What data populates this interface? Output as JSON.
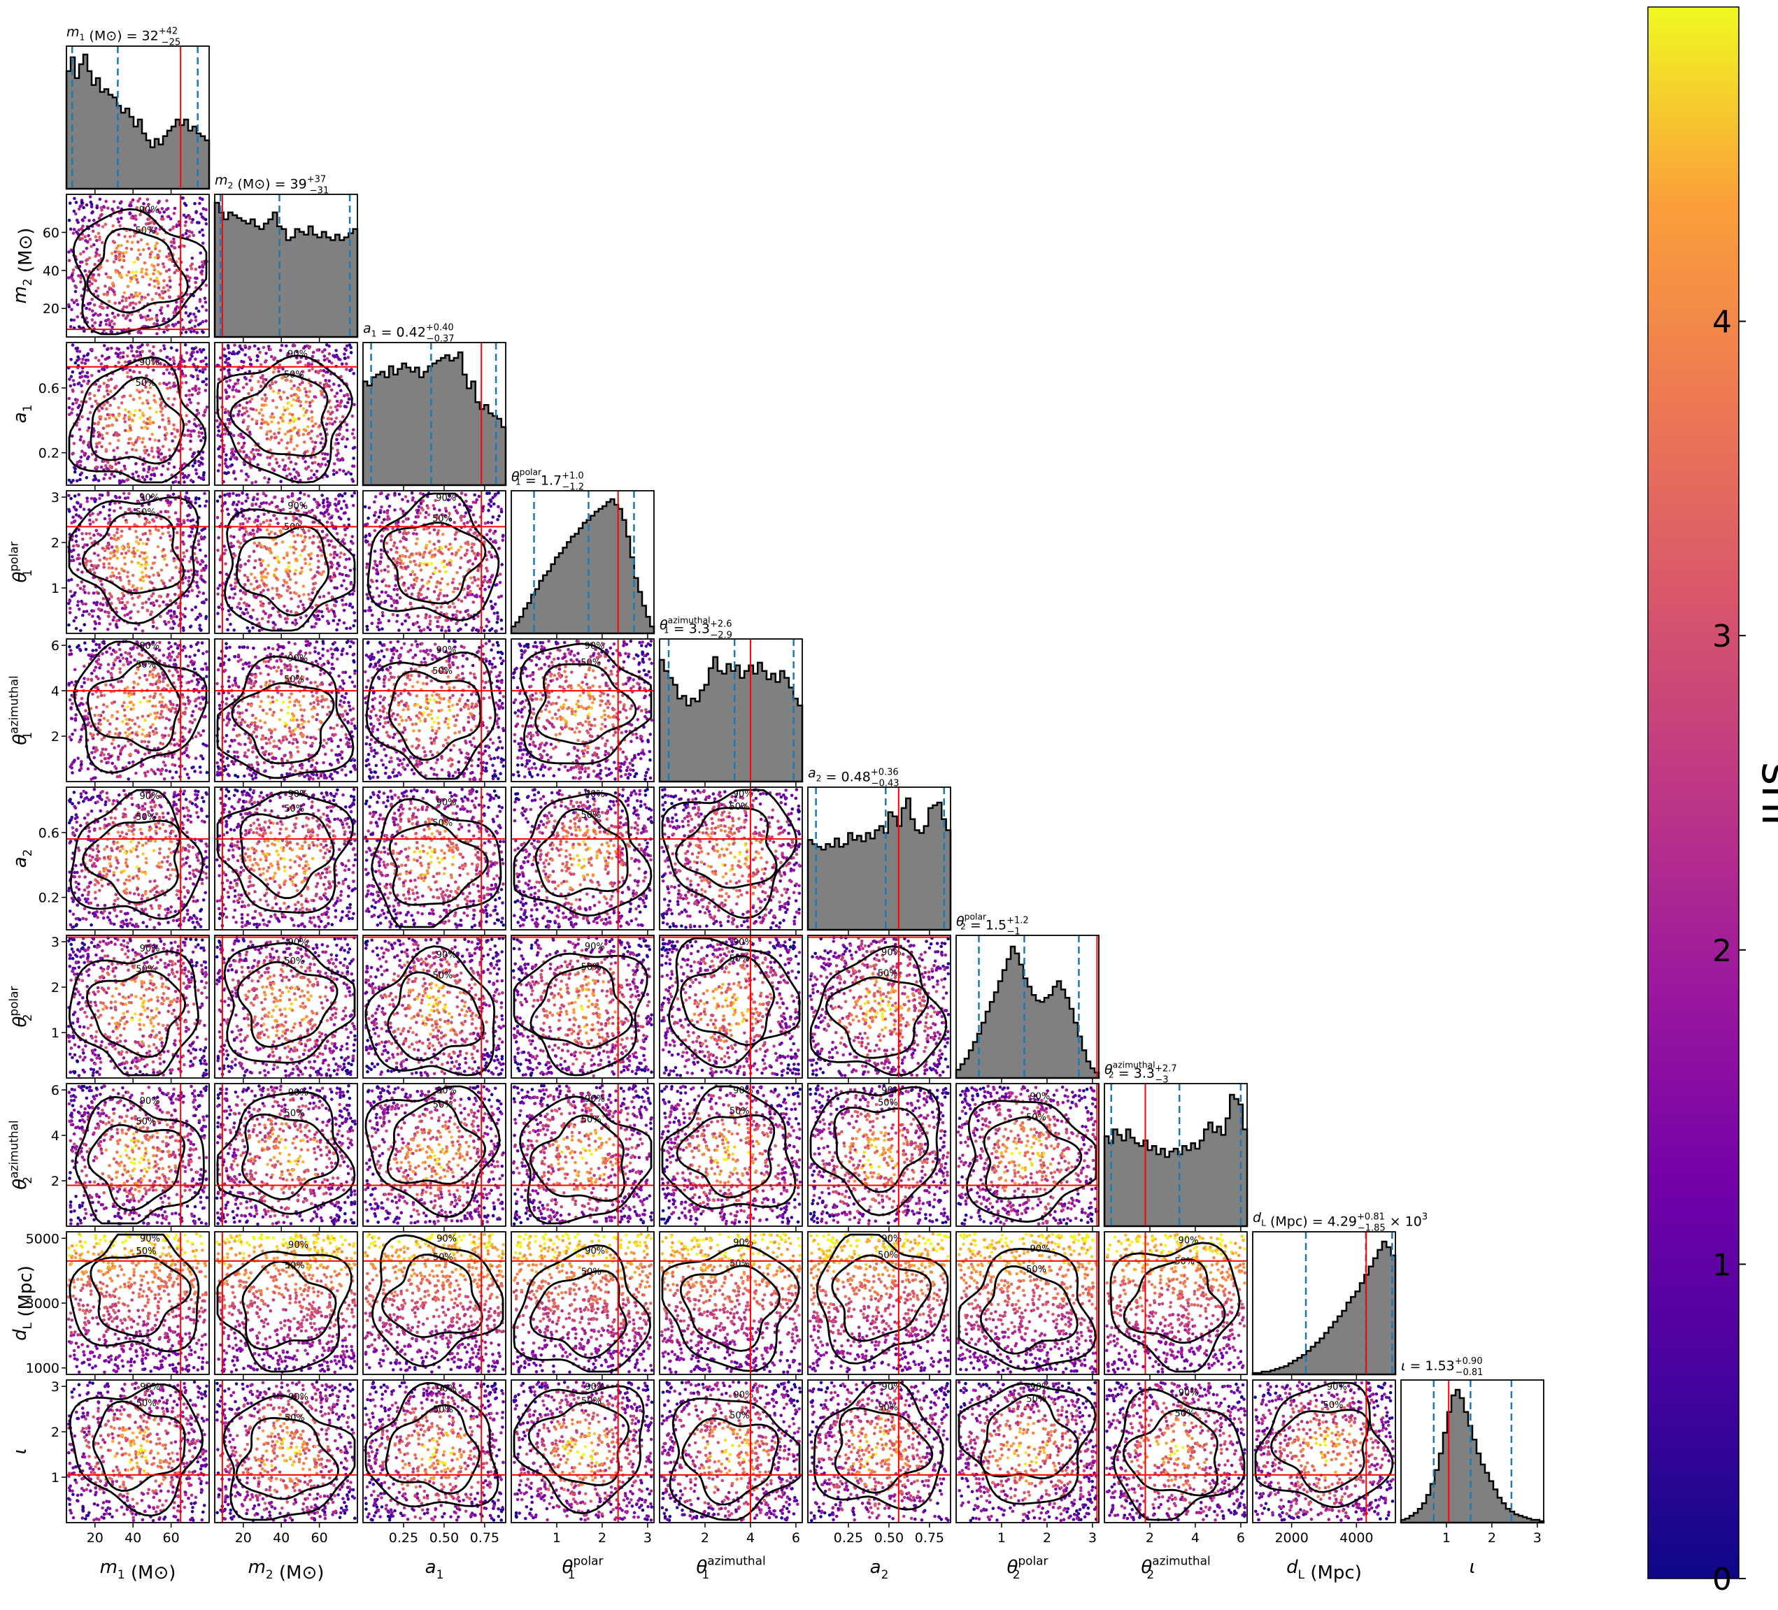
{
  "chart_data": {
    "type": "corner",
    "parameters": [
      {
        "label": "m1 (M⊙)",
        "sym": "m",
        "sub": "1",
        "unit": " (M⊙)",
        "range": [
          5,
          80
        ],
        "ticks": [
          20,
          40,
          60
        ],
        "tick_labels": [
          "20",
          "40",
          "60"
        ],
        "title": {
          "value": "32",
          "plus": "+42",
          "minus": "−25"
        },
        "truth": 65,
        "quantiles": [
          8,
          32,
          74
        ]
      },
      {
        "label": "m2 (M⊙)",
        "sym": "m",
        "sub": "2",
        "unit": " (M⊙)",
        "range": [
          5,
          80
        ],
        "ticks": [
          20,
          40,
          60
        ],
        "tick_labels": [
          "20",
          "40",
          "60"
        ],
        "title": {
          "value": "39",
          "plus": "+37",
          "minus": "−31"
        },
        "truth": 9,
        "quantiles": [
          8,
          39,
          76
        ]
      },
      {
        "label": "a1",
        "sym": "a",
        "sub": "1",
        "unit": "",
        "range": [
          0,
          0.88
        ],
        "ticks": [
          0.25,
          0.5,
          0.75
        ],
        "tick_labels": [
          "0.25",
          "0.50",
          "0.75"
        ],
        "y_ticks": [
          0.2,
          0.6
        ],
        "y_tick_labels": [
          "0.2",
          "0.6"
        ],
        "title": {
          "value": "0.42",
          "plus": "+0.40",
          "minus": "−0.37"
        },
        "truth": 0.73,
        "quantiles": [
          0.05,
          0.42,
          0.82
        ]
      },
      {
        "label": "θ1 polar",
        "sym": "θ",
        "sub": "1",
        "sup": "polar",
        "unit": "",
        "range": [
          0,
          3.14
        ],
        "ticks": [
          1,
          2,
          3
        ],
        "tick_labels": [
          "1",
          "2",
          "3"
        ],
        "title": {
          "value": "1.7",
          "plus": "+1.0",
          "minus": "−1.2"
        },
        "truth": 2.35,
        "quantiles": [
          0.5,
          1.7,
          2.7
        ]
      },
      {
        "label": "θ1 azimuthal",
        "sym": "θ",
        "sub": "1",
        "sup": "azimuthal",
        "unit": "",
        "range": [
          0,
          6.28
        ],
        "ticks": [
          2,
          4,
          6
        ],
        "tick_labels": [
          "2",
          "4",
          "6"
        ],
        "title": {
          "value": "3.3",
          "plus": "+2.6",
          "minus": "−2.9"
        },
        "truth": 4.0,
        "quantiles": [
          0.4,
          3.3,
          5.9
        ]
      },
      {
        "label": "a2",
        "sym": "a",
        "sub": "2",
        "unit": "",
        "range": [
          0,
          0.88
        ],
        "ticks": [
          0.25,
          0.5,
          0.75
        ],
        "tick_labels": [
          "0.25",
          "0.50",
          "0.75"
        ],
        "y_ticks": [
          0.2,
          0.6
        ],
        "y_tick_labels": [
          "0.2",
          "0.6"
        ],
        "title": {
          "value": "0.48",
          "plus": "+0.36",
          "minus": "−0.43"
        },
        "truth": 0.56,
        "quantiles": [
          0.05,
          0.48,
          0.84
        ]
      },
      {
        "label": "θ2 polar",
        "sym": "θ",
        "sub": "2",
        "sup": "polar",
        "unit": "",
        "range": [
          0,
          3.14
        ],
        "ticks": [
          1,
          2,
          3
        ],
        "tick_labels": [
          "1",
          "2",
          "3"
        ],
        "title": {
          "value": "1.5",
          "plus": "+1.2",
          "minus": "−1"
        },
        "truth": 3.1,
        "quantiles": [
          0.5,
          1.5,
          2.7
        ]
      },
      {
        "label": "θ2 azimuthal",
        "sym": "θ",
        "sub": "2",
        "sup": "azimuthal",
        "unit": "",
        "range": [
          0,
          6.28
        ],
        "ticks": [
          2,
          4,
          6
        ],
        "tick_labels": [
          "2",
          "4",
          "6"
        ],
        "title": {
          "value": "3.3",
          "plus": "+2.7",
          "minus": "−3"
        },
        "truth": 1.8,
        "quantiles": [
          0.3,
          3.3,
          6.0
        ]
      },
      {
        "label": "dL (Mpc)",
        "sym": "d",
        "sub": "L",
        "unit": " (Mpc)",
        "range": [
          800,
          5200
        ],
        "ticks": [
          2000,
          4000
        ],
        "tick_labels": [
          "2000",
          "4000"
        ],
        "y_ticks": [
          1000,
          3000,
          5000
        ],
        "y_tick_labels": [
          "1000",
          "3000",
          "5000"
        ],
        "title": {
          "value": "4.29",
          "plus": "+0.81",
          "minus": "−1.85",
          "suffix": " × 10",
          "exp": "3"
        },
        "truth": 4300,
        "quantiles": [
          2440,
          4290,
          5100
        ]
      },
      {
        "label": "ι",
        "sym": "ι",
        "sub": "",
        "unit": "",
        "range": [
          0,
          3.14
        ],
        "ticks": [
          1,
          2,
          3
        ],
        "tick_labels": [
          "1",
          "2",
          "3"
        ],
        "title": {
          "value": "1.53",
          "plus": "+0.90",
          "minus": "−0.81"
        },
        "truth": 1.05,
        "quantiles": [
          0.72,
          1.53,
          2.43
        ]
      }
    ],
    "histograms": [
      [
        0.85,
        0.95,
        0.8,
        0.9,
        0.97,
        0.85,
        0.75,
        0.8,
        0.7,
        0.72,
        0.68,
        0.66,
        0.6,
        0.55,
        0.58,
        0.52,
        0.45,
        0.5,
        0.4,
        0.35,
        0.3,
        0.36,
        0.32,
        0.38,
        0.42,
        0.45,
        0.5,
        0.46,
        0.5,
        0.42,
        0.45,
        0.4,
        0.38,
        0.35
      ],
      [
        0.97,
        0.9,
        0.85,
        0.9,
        0.88,
        0.86,
        0.84,
        0.82,
        0.85,
        0.8,
        0.78,
        0.82,
        0.85,
        0.9,
        0.8,
        0.78,
        0.7,
        0.72,
        0.78,
        0.76,
        0.74,
        0.8,
        0.74,
        0.72,
        0.76,
        0.72,
        0.7,
        0.74,
        0.7,
        0.72,
        0.75,
        0.78
      ],
      [
        0.75,
        0.72,
        0.78,
        0.8,
        0.82,
        0.78,
        0.86,
        0.8,
        0.84,
        0.88,
        0.85,
        0.82,
        0.85,
        0.78,
        0.82,
        0.86,
        0.88,
        0.9,
        0.92,
        0.94,
        0.9,
        0.92,
        0.96,
        0.8,
        0.7,
        0.75,
        0.6,
        0.55,
        0.58,
        0.52,
        0.5,
        0.48,
        0.42
      ],
      [
        0.05,
        0.08,
        0.12,
        0.18,
        0.22,
        0.28,
        0.32,
        0.38,
        0.42,
        0.45,
        0.5,
        0.55,
        0.58,
        0.62,
        0.66,
        0.7,
        0.72,
        0.76,
        0.8,
        0.82,
        0.85,
        0.88,
        0.9,
        0.92,
        0.95,
        0.97,
        0.93,
        0.9,
        0.82,
        0.7,
        0.55,
        0.4,
        0.3,
        0.2,
        0.12,
        0.05
      ],
      [
        0.88,
        0.8,
        0.75,
        0.7,
        0.6,
        0.62,
        0.55,
        0.6,
        0.58,
        0.66,
        0.7,
        0.82,
        0.9,
        0.8,
        0.78,
        0.85,
        0.8,
        0.84,
        0.75,
        0.8,
        0.84,
        0.78,
        0.86,
        0.8,
        0.74,
        0.78,
        0.72,
        0.8,
        0.75,
        0.68,
        0.6,
        0.55
      ],
      [
        0.65,
        0.62,
        0.6,
        0.58,
        0.62,
        0.6,
        0.66,
        0.6,
        0.62,
        0.7,
        0.65,
        0.68,
        0.64,
        0.7,
        0.66,
        0.72,
        0.75,
        0.7,
        0.85,
        0.82,
        0.75,
        0.88,
        0.95,
        0.8,
        0.72,
        0.7,
        0.75,
        0.88,
        0.9,
        0.92,
        0.8,
        0.72
      ],
      [
        0.06,
        0.1,
        0.14,
        0.2,
        0.26,
        0.32,
        0.4,
        0.48,
        0.55,
        0.62,
        0.7,
        0.78,
        0.86,
        0.95,
        0.9,
        0.82,
        0.72,
        0.66,
        0.6,
        0.56,
        0.55,
        0.58,
        0.6,
        0.66,
        0.7,
        0.64,
        0.58,
        0.5,
        0.4,
        0.3,
        0.2,
        0.12,
        0.07,
        0.04
      ],
      [
        0.65,
        0.6,
        0.7,
        0.66,
        0.62,
        0.7,
        0.64,
        0.6,
        0.58,
        0.62,
        0.55,
        0.58,
        0.52,
        0.56,
        0.5,
        0.54,
        0.56,
        0.52,
        0.58,
        0.55,
        0.6,
        0.56,
        0.62,
        0.7,
        0.75,
        0.68,
        0.72,
        0.66,
        0.78,
        0.95,
        0.92,
        0.88,
        0.7
      ],
      [
        0.01,
        0.01,
        0.02,
        0.02,
        0.03,
        0.04,
        0.05,
        0.06,
        0.08,
        0.1,
        0.12,
        0.14,
        0.17,
        0.2,
        0.23,
        0.26,
        0.3,
        0.34,
        0.38,
        0.42,
        0.46,
        0.52,
        0.56,
        0.6,
        0.66,
        0.72,
        0.78,
        0.84,
        0.9,
        0.96,
        0.92,
        0.86
      ],
      [
        0.02,
        0.03,
        0.05,
        0.07,
        0.1,
        0.14,
        0.2,
        0.28,
        0.38,
        0.5,
        0.65,
        0.8,
        0.92,
        0.96,
        0.9,
        0.8,
        0.7,
        0.6,
        0.5,
        0.42,
        0.36,
        0.3,
        0.24,
        0.18,
        0.14,
        0.1,
        0.08,
        0.06,
        0.05,
        0.04,
        0.03,
        0.02,
        0.02,
        0.01
      ]
    ],
    "contour_labels": [
      "50%",
      "90%"
    ],
    "colorbar": {
      "label": "snr",
      "min": 0,
      "max": 5,
      "ticks": [
        0,
        1,
        2,
        3,
        4
      ],
      "tick_labels": [
        "0",
        "1",
        "2",
        "3",
        "4"
      ],
      "colormap": "plasma"
    },
    "colors": {
      "hist_fill": "#808080",
      "truth": "#ff0000",
      "quantile": "#1f77b4",
      "contour": "#000000"
    }
  }
}
